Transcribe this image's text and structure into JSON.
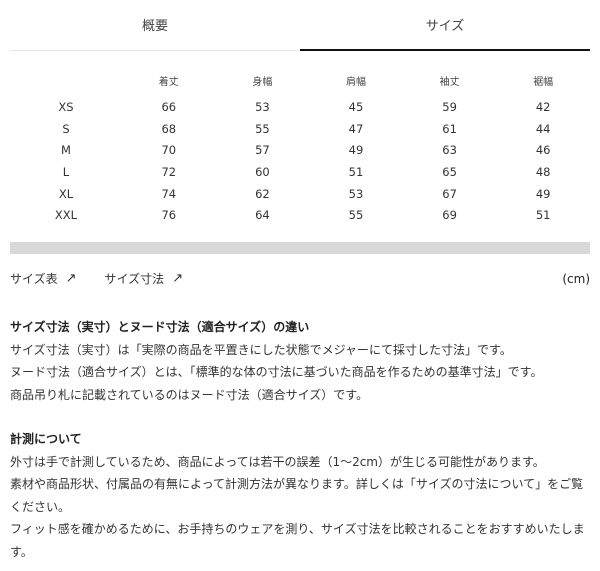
{
  "tabs": [
    {
      "label": "概要"
    },
    {
      "label": "サイズ",
      "active": true
    }
  ],
  "table": {
    "headers": [
      "",
      "着丈",
      "身幅",
      "肩幅",
      "袖丈",
      "裾幅"
    ],
    "rows": [
      [
        "XS",
        "66",
        "53",
        "45",
        "59",
        "42"
      ],
      [
        "S",
        "68",
        "55",
        "47",
        "61",
        "44"
      ],
      [
        "M",
        "70",
        "57",
        "49",
        "63",
        "46"
      ],
      [
        "L",
        "72",
        "60",
        "51",
        "65",
        "48"
      ],
      [
        "XL",
        "74",
        "62",
        "53",
        "67",
        "49"
      ],
      [
        "XXL",
        "76",
        "64",
        "55",
        "69",
        "51"
      ]
    ]
  },
  "links": {
    "size_chart": "サイズ表",
    "size_measure": "サイズ寸法",
    "arrow": "↗",
    "unit": "(cm)"
  },
  "notes": {
    "heading1": "サイズ寸法（実寸）とヌード寸法（適合サイズ）の違い",
    "p1": "サイズ寸法（実寸）は「実際の商品を平置きにした状態でメジャーにて採寸した寸法」です。",
    "p2": "ヌード寸法（適合サイズ）とは、「標準的な体の寸法に基づいた商品を作るための基準寸法」です。",
    "p3": "商品吊り札に記載されているのはヌード寸法（適合サイズ）です。",
    "heading2": "計測について",
    "p4": "外寸は手で計測しているため、商品によっては若干の誤差（1〜2cm）が生じる可能性があります。",
    "p5": "素材や商品形状、付属品の有無によって計測方法が異なります。詳しくは「サイズの寸法について」をご覧ください。",
    "p6": "フィット感を確かめるために、お手持ちのウェアを測り、サイズ寸法を比較されることをおすすめいたします。"
  }
}
